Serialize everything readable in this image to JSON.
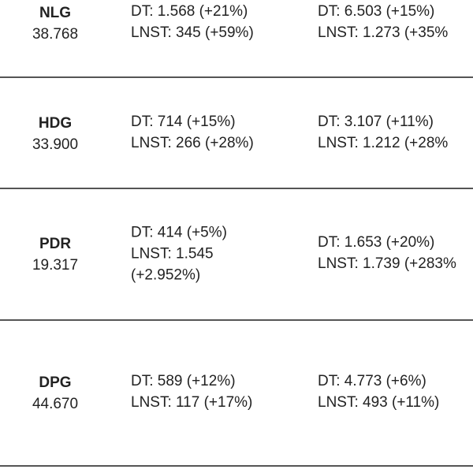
{
  "table": {
    "rows": [
      {
        "ticker": "NLG",
        "price": "38.768",
        "col1": [
          "DT: 1.568 (+21%)",
          "LNST: 345 (+59%)"
        ],
        "col2": [
          "DT: 6.503 (+15%)",
          "LNST: 1.273 (+35%"
        ]
      },
      {
        "ticker": "HDG",
        "price": "33.900",
        "col1": [
          "DT: 714 (+15%)",
          "LNST: 266 (+28%)"
        ],
        "col2": [
          "DT: 3.107 (+11%)",
          "LNST: 1.212 (+28%"
        ]
      },
      {
        "ticker": "PDR",
        "price": "19.317",
        "col1": [
          "DT: 414 (+5%)",
          "LNST: 1.545",
          "(+2.952%)"
        ],
        "col2": [
          "DT: 1.653 (+20%)",
          "LNST: 1.739 (+283%"
        ]
      },
      {
        "ticker": "DPG",
        "price": "44.670",
        "col1": [
          "DT: 589 (+12%)",
          "LNST: 117 (+17%)"
        ],
        "col2": [
          "DT: 4.773 (+6%)",
          "LNST: 493 (+11%)"
        ]
      }
    ]
  }
}
